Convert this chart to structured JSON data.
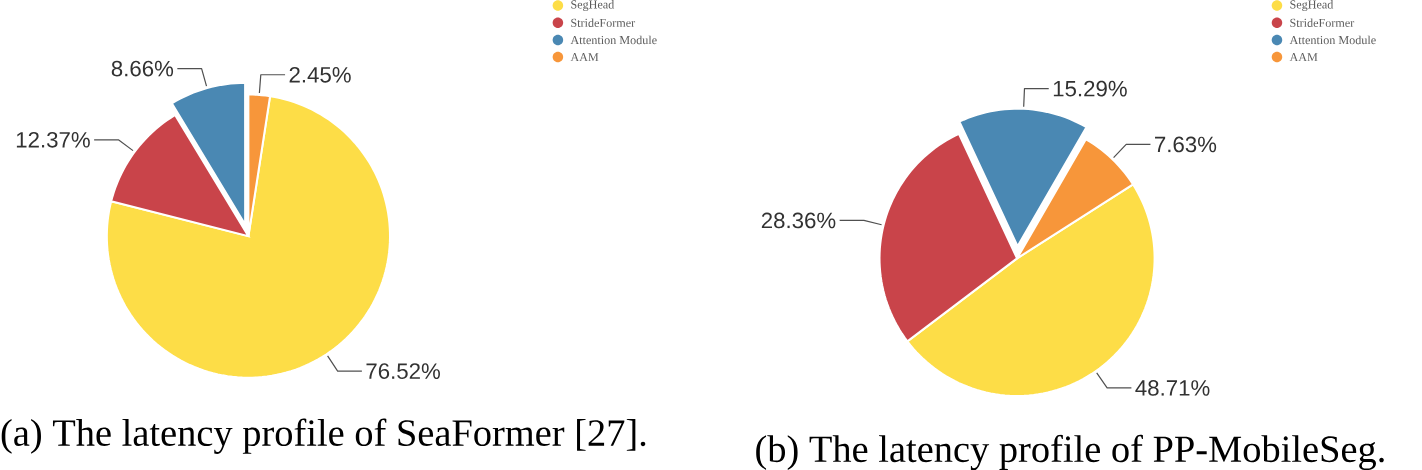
{
  "chart_data": [
    {
      "type": "pie",
      "title": "(a) The latency profile of SeaFormer [27].",
      "categories": [
        "SegHead",
        "StrideFormer",
        "Attention Module",
        "AAM"
      ],
      "values": [
        76.52,
        12.37,
        8.66,
        2.45
      ],
      "value_labels": [
        "76.52%",
        "12.37%",
        "8.66%",
        "2.45%"
      ],
      "colors": [
        "#fddd47",
        "#c9444a",
        "#4a88b3",
        "#f7963a"
      ],
      "legend": "top right"
    },
    {
      "type": "pie",
      "title": "(b) The latency profile of PP-MobileSeg.",
      "categories": [
        "SegHead",
        "StrideFormer",
        "Attention Module",
        "AAM"
      ],
      "values": [
        48.71,
        28.36,
        15.29,
        7.63
      ],
      "value_labels": [
        "48.71%",
        "28.36%",
        "15.29%",
        "7.63%"
      ],
      "colors": [
        "#fddd47",
        "#c9444a",
        "#4a88b3",
        "#f7963a"
      ],
      "legend": "top right"
    }
  ]
}
